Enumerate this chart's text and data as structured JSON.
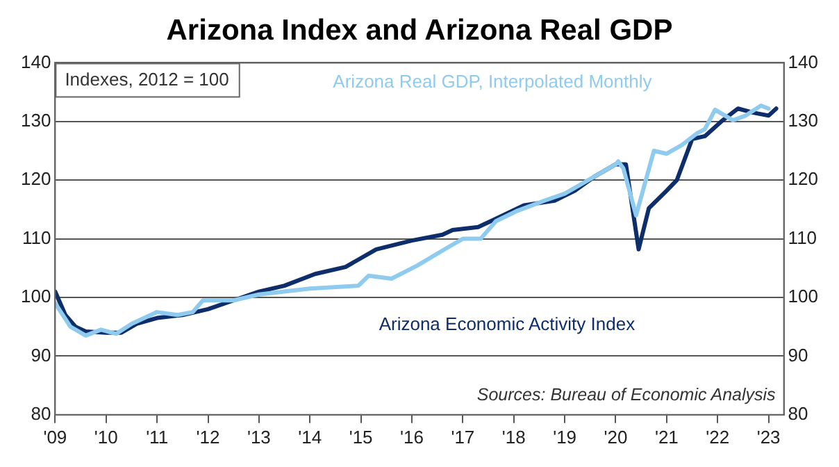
{
  "chart_data": {
    "type": "line",
    "title": "Arizona Index and Arizona Real GDP",
    "annotations": [
      "Indexes, 2012 = 100",
      "Sources: Bureau of Economic Analysis"
    ],
    "xlim": [
      2009,
      2023.3
    ],
    "xticks": [
      {
        "value": 2009,
        "label": "'09"
      },
      {
        "value": 2010,
        "label": "'10"
      },
      {
        "value": 2011,
        "label": "'11"
      },
      {
        "value": 2012,
        "label": "'12"
      },
      {
        "value": 2013,
        "label": "'13"
      },
      {
        "value": 2014,
        "label": "'14"
      },
      {
        "value": 2015,
        "label": "'15"
      },
      {
        "value": 2016,
        "label": "'16"
      },
      {
        "value": 2017,
        "label": "'17"
      },
      {
        "value": 2018,
        "label": "'18"
      },
      {
        "value": 2019,
        "label": "'19"
      },
      {
        "value": 2020,
        "label": "'20"
      },
      {
        "value": 2021,
        "label": "'21"
      },
      {
        "value": 2022,
        "label": "'22"
      },
      {
        "value": 2023,
        "label": "'23"
      }
    ],
    "ylim": [
      80,
      140
    ],
    "yticks": [
      80,
      90,
      100,
      110,
      120,
      130,
      140
    ],
    "y2lim": [
      80,
      140
    ],
    "y2ticks": [
      80,
      90,
      100,
      110,
      120,
      130,
      140
    ],
    "grid": "y",
    "legend": false,
    "marker": "none",
    "line_style": "solid",
    "series": [
      {
        "name": "Arizona Real GDP, Interpolated Monthly",
        "color": "#8fcbef",
        "x": [
          2009,
          2009.3,
          2009.6,
          2009.9,
          2010.2,
          2010.5,
          2011,
          2011.4,
          2011.7,
          2011.9,
          2012.5,
          2013,
          2013.5,
          2014,
          2014.95,
          2015.15,
          2015.6,
          2016.1,
          2016.7,
          2017,
          2017.35,
          2017.65,
          2018.05,
          2018.6,
          2019,
          2019.6,
          2020,
          2020.05,
          2020.15,
          2020.4,
          2020.75,
          2021,
          2021.3,
          2021.6,
          2021.75,
          2021.95,
          2022.3,
          2022.55,
          2022.85,
          2023
        ],
        "values": [
          99,
          95,
          93.5,
          94.5,
          93.8,
          95.5,
          97.5,
          97,
          97.5,
          99.5,
          99.5,
          100.5,
          101,
          101.5,
          102,
          103.7,
          103.2,
          105.4,
          108.5,
          110,
          110,
          113,
          114.7,
          116.5,
          117.7,
          120.7,
          122.7,
          123.2,
          122,
          114,
          125,
          124.5,
          126,
          128,
          128.7,
          132,
          130.2,
          131,
          132.7,
          132.2
        ]
      },
      {
        "name": "Arizona Economic Activity Index",
        "color": "#0d2d6b",
        "x": [
          2009,
          2009.2,
          2009.4,
          2009.6,
          2010,
          2010.3,
          2010.6,
          2011,
          2011.5,
          2012,
          2012.5,
          2013,
          2013.5,
          2014.1,
          2014.7,
          2015.3,
          2016,
          2016.6,
          2016.8,
          2017.3,
          2017.6,
          2018.2,
          2018.8,
          2019.2,
          2019.6,
          2020,
          2020.2,
          2020.45,
          2020.65,
          2021,
          2021.2,
          2021.5,
          2021.75,
          2022.1,
          2022.4,
          2022.7,
          2023,
          2023.15
        ],
        "values": [
          101,
          97,
          95,
          94.2,
          94,
          94,
          95.5,
          96.5,
          97,
          98,
          99.5,
          101,
          102,
          104,
          105.2,
          108.2,
          109.7,
          110.7,
          111.5,
          112,
          113.2,
          115.7,
          116.5,
          118.2,
          120.7,
          122.7,
          122.7,
          108.2,
          115.2,
          118.2,
          120,
          127,
          127.5,
          130.2,
          132.2,
          131.5,
          131,
          132.2
        ]
      }
    ]
  }
}
